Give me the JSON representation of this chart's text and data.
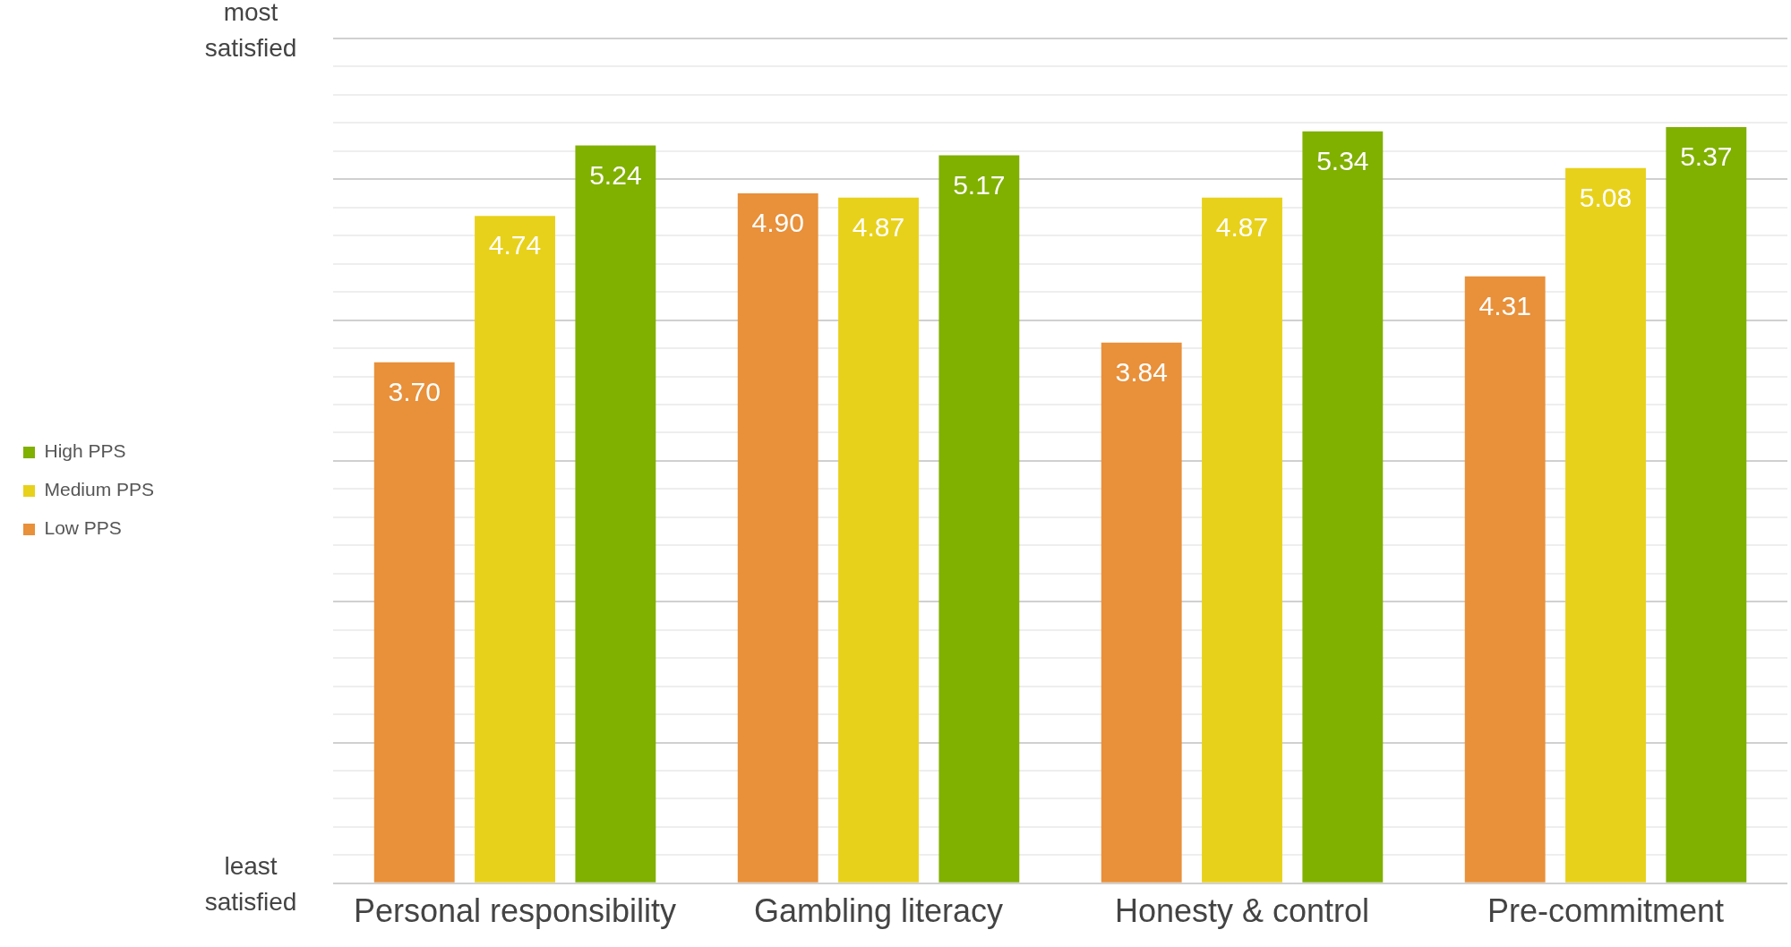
{
  "chart_data": {
    "type": "bar",
    "categories": [
      "Personal responsibility",
      "Gambling literacy",
      "Honesty & control",
      "Pre-commitment"
    ],
    "series": [
      {
        "name": "Low PPS",
        "color": "#e8903a",
        "values": [
          3.7,
          4.9,
          3.84,
          4.31
        ],
        "value_labels": [
          "3.70",
          "4.90",
          "3.84",
          "4.31"
        ]
      },
      {
        "name": "Medium PPS",
        "color": "#e8d11a",
        "values": [
          4.74,
          4.87,
          4.87,
          5.08
        ],
        "value_labels": [
          "4.74",
          "4.87",
          "4.87",
          "5.08"
        ]
      },
      {
        "name": "High PPS",
        "color": "#80b000",
        "values": [
          5.24,
          5.17,
          5.34,
          5.37
        ],
        "value_labels": [
          "5.24",
          "5.17",
          "5.34",
          "5.37"
        ]
      }
    ],
    "ylim": [
      0,
      6
    ],
    "yticks": [
      {
        "value": 0,
        "label": null
      },
      {
        "value": 0.2,
        "label": null
      },
      {
        "value": 0.4,
        "label": null
      },
      {
        "value": 0.6,
        "label": null
      },
      {
        "value": 0.8,
        "label": null
      },
      {
        "value": 1,
        "label": null
      },
      {
        "value": 1.2,
        "label": null
      },
      {
        "value": 1.4,
        "label": null
      },
      {
        "value": 1.6,
        "label": null
      },
      {
        "value": 1.8,
        "label": null
      },
      {
        "value": 2,
        "label": null
      },
      {
        "value": 2.2,
        "label": null
      },
      {
        "value": 2.4,
        "label": null
      },
      {
        "value": 2.6,
        "label": null
      },
      {
        "value": 2.8,
        "label": null
      },
      {
        "value": 3,
        "label": null
      },
      {
        "value": 3.2,
        "label": null
      },
      {
        "value": 3.4,
        "label": null
      },
      {
        "value": 3.6,
        "label": null
      },
      {
        "value": 3.8,
        "label": null
      },
      {
        "value": 4,
        "label": null
      },
      {
        "value": 4.2,
        "label": null
      },
      {
        "value": 4.4,
        "label": null
      },
      {
        "value": 4.6,
        "label": null
      },
      {
        "value": 4.8,
        "label": null
      },
      {
        "value": 5,
        "label": null
      },
      {
        "value": 5.2,
        "label": null
      },
      {
        "value": 5.4,
        "label": null
      },
      {
        "value": 5.6,
        "label": null
      },
      {
        "value": 5.8,
        "label": null
      },
      {
        "value": 6,
        "label": null
      }
    ],
    "annotations": [
      "least satisfied",
      "most satisfied"
    ],
    "grid": "y",
    "legend": "left"
  }
}
